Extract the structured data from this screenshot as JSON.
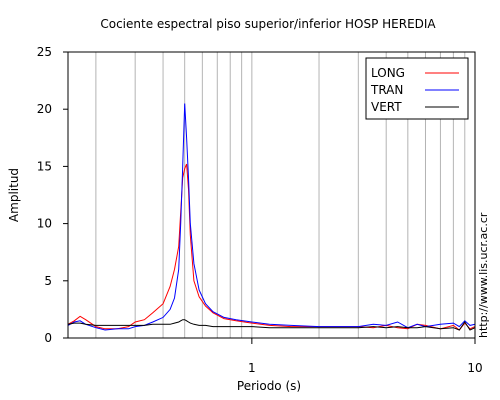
{
  "chart_data": {
    "type": "line",
    "title": "Cociente espectral piso superior/inferior  HOSP HEREDIA",
    "xlabel": "Periodo (s)",
    "ylabel": "Amplitud",
    "xscale": "log",
    "xlim": [
      0.15,
      10
    ],
    "ylim": [
      0,
      25
    ],
    "grid": "vertical",
    "legend_position": "top-right",
    "x_tick_labels": [
      {
        "value": 1,
        "label": "1"
      },
      {
        "value": 10,
        "label": "10"
      }
    ],
    "y_ticks": [
      0,
      5,
      10,
      15,
      20,
      25
    ],
    "y_tick_labels": [
      "0",
      "5",
      "10",
      "15",
      "20",
      "25"
    ],
    "x_gridlines": [
      0.2,
      0.3,
      0.4,
      0.5,
      0.6,
      0.7,
      0.8,
      0.9,
      1,
      2,
      3,
      4,
      5,
      6,
      7,
      8,
      9
    ],
    "series": [
      {
        "name": "LONG",
        "color": "#ff0000",
        "x": [
          0.15,
          0.16,
          0.17,
          0.18,
          0.2,
          0.22,
          0.25,
          0.28,
          0.3,
          0.33,
          0.36,
          0.4,
          0.43,
          0.45,
          0.47,
          0.48,
          0.49,
          0.5,
          0.51,
          0.52,
          0.53,
          0.55,
          0.58,
          0.62,
          0.67,
          0.75,
          0.85,
          1,
          1.2,
          1.5,
          2,
          2.5,
          3,
          3.5,
          4,
          4.5,
          5,
          5.5,
          6,
          7,
          8,
          8.5,
          9,
          9.5,
          10
        ],
        "y": [
          1.2,
          1.5,
          1.9,
          1.6,
          1.0,
          0.8,
          0.8,
          1.0,
          1.4,
          1.6,
          2.2,
          3.0,
          4.5,
          6.0,
          8.0,
          11.0,
          14.0,
          14.8,
          15.2,
          13.0,
          9.0,
          5.0,
          3.6,
          2.8,
          2.2,
          1.7,
          1.5,
          1.3,
          1.1,
          1.0,
          1.0,
          1.0,
          1.0,
          0.9,
          1.1,
          0.9,
          0.8,
          1.2,
          1.1,
          0.8,
          1.1,
          0.7,
          1.3,
          0.8,
          1.0
        ]
      },
      {
        "name": "TRAN",
        "color": "#0000ff",
        "x": [
          0.15,
          0.16,
          0.17,
          0.18,
          0.2,
          0.22,
          0.25,
          0.28,
          0.3,
          0.33,
          0.36,
          0.4,
          0.43,
          0.45,
          0.47,
          0.48,
          0.49,
          0.5,
          0.51,
          0.52,
          0.53,
          0.55,
          0.58,
          0.62,
          0.67,
          0.75,
          0.85,
          1,
          1.2,
          1.5,
          2,
          2.5,
          3,
          3.5,
          4,
          4.5,
          5,
          5.5,
          6,
          7,
          8,
          8.5,
          9,
          9.5,
          10
        ],
        "y": [
          1.1,
          1.4,
          1.5,
          1.2,
          0.9,
          0.7,
          0.8,
          0.8,
          1.0,
          1.1,
          1.4,
          1.8,
          2.5,
          3.5,
          6.0,
          10.0,
          15.0,
          20.5,
          17.5,
          14.0,
          10.0,
          6.5,
          4.2,
          3.0,
          2.3,
          1.8,
          1.6,
          1.4,
          1.2,
          1.1,
          1.0,
          1.0,
          1.0,
          1.2,
          1.1,
          1.4,
          0.9,
          1.2,
          1.0,
          1.2,
          1.3,
          1.0,
          1.5,
          1.1,
          1.2
        ]
      },
      {
        "name": "VERT",
        "color": "#000000",
        "x": [
          0.15,
          0.16,
          0.17,
          0.18,
          0.2,
          0.22,
          0.25,
          0.28,
          0.3,
          0.33,
          0.36,
          0.4,
          0.43,
          0.45,
          0.47,
          0.48,
          0.49,
          0.5,
          0.51,
          0.52,
          0.53,
          0.55,
          0.58,
          0.62,
          0.67,
          0.75,
          0.85,
          1,
          1.2,
          1.5,
          2,
          2.5,
          3,
          3.5,
          4,
          4.5,
          5,
          5.5,
          6,
          7,
          8,
          8.5,
          9,
          9.5,
          10
        ],
        "y": [
          1.2,
          1.3,
          1.3,
          1.2,
          1.1,
          1.1,
          1.1,
          1.1,
          1.1,
          1.1,
          1.2,
          1.2,
          1.2,
          1.3,
          1.4,
          1.5,
          1.6,
          1.6,
          1.5,
          1.4,
          1.3,
          1.2,
          1.1,
          1.1,
          1.0,
          1.0,
          1.0,
          1.0,
          0.9,
          0.9,
          0.9,
          0.9,
          0.9,
          1.0,
          0.9,
          1.0,
          0.9,
          0.9,
          1.0,
          0.8,
          0.9,
          0.7,
          1.4,
          0.7,
          0.9
        ]
      }
    ]
  },
  "credit": "http://www.lis.ucr.ac.cr"
}
